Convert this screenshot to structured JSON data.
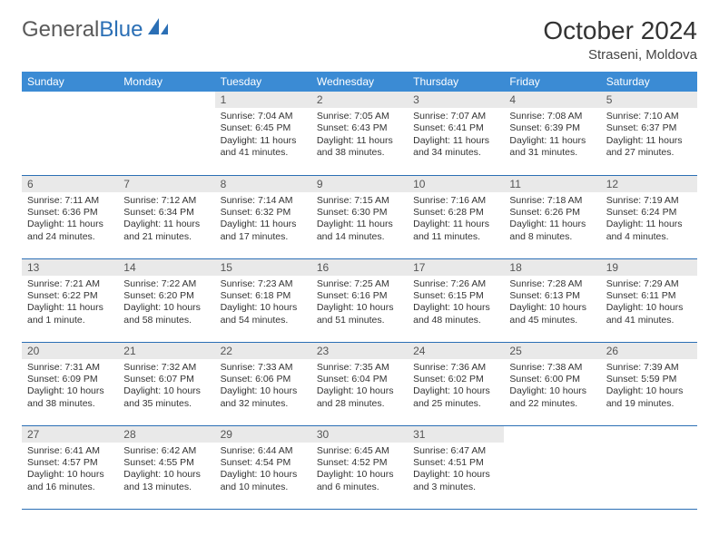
{
  "brand": {
    "part1": "General",
    "part2": "Blue"
  },
  "title": "October 2024",
  "location": "Straseni, Moldova",
  "colors": {
    "header_bg": "#3b8bd4",
    "rule": "#2b6fb5",
    "daynum_bg": "#e9e9e9",
    "text": "#333333"
  },
  "weekdays": [
    "Sunday",
    "Monday",
    "Tuesday",
    "Wednesday",
    "Thursday",
    "Friday",
    "Saturday"
  ],
  "weeks": [
    [
      null,
      null,
      {
        "n": "1",
        "sr": "7:04 AM",
        "ss": "6:45 PM",
        "dl": "11 hours and 41 minutes."
      },
      {
        "n": "2",
        "sr": "7:05 AM",
        "ss": "6:43 PM",
        "dl": "11 hours and 38 minutes."
      },
      {
        "n": "3",
        "sr": "7:07 AM",
        "ss": "6:41 PM",
        "dl": "11 hours and 34 minutes."
      },
      {
        "n": "4",
        "sr": "7:08 AM",
        "ss": "6:39 PM",
        "dl": "11 hours and 31 minutes."
      },
      {
        "n": "5",
        "sr": "7:10 AM",
        "ss": "6:37 PM",
        "dl": "11 hours and 27 minutes."
      }
    ],
    [
      {
        "n": "6",
        "sr": "7:11 AM",
        "ss": "6:36 PM",
        "dl": "11 hours and 24 minutes."
      },
      {
        "n": "7",
        "sr": "7:12 AM",
        "ss": "6:34 PM",
        "dl": "11 hours and 21 minutes."
      },
      {
        "n": "8",
        "sr": "7:14 AM",
        "ss": "6:32 PM",
        "dl": "11 hours and 17 minutes."
      },
      {
        "n": "9",
        "sr": "7:15 AM",
        "ss": "6:30 PM",
        "dl": "11 hours and 14 minutes."
      },
      {
        "n": "10",
        "sr": "7:16 AM",
        "ss": "6:28 PM",
        "dl": "11 hours and 11 minutes."
      },
      {
        "n": "11",
        "sr": "7:18 AM",
        "ss": "6:26 PM",
        "dl": "11 hours and 8 minutes."
      },
      {
        "n": "12",
        "sr": "7:19 AM",
        "ss": "6:24 PM",
        "dl": "11 hours and 4 minutes."
      }
    ],
    [
      {
        "n": "13",
        "sr": "7:21 AM",
        "ss": "6:22 PM",
        "dl": "11 hours and 1 minute."
      },
      {
        "n": "14",
        "sr": "7:22 AM",
        "ss": "6:20 PM",
        "dl": "10 hours and 58 minutes."
      },
      {
        "n": "15",
        "sr": "7:23 AM",
        "ss": "6:18 PM",
        "dl": "10 hours and 54 minutes."
      },
      {
        "n": "16",
        "sr": "7:25 AM",
        "ss": "6:16 PM",
        "dl": "10 hours and 51 minutes."
      },
      {
        "n": "17",
        "sr": "7:26 AM",
        "ss": "6:15 PM",
        "dl": "10 hours and 48 minutes."
      },
      {
        "n": "18",
        "sr": "7:28 AM",
        "ss": "6:13 PM",
        "dl": "10 hours and 45 minutes."
      },
      {
        "n": "19",
        "sr": "7:29 AM",
        "ss": "6:11 PM",
        "dl": "10 hours and 41 minutes."
      }
    ],
    [
      {
        "n": "20",
        "sr": "7:31 AM",
        "ss": "6:09 PM",
        "dl": "10 hours and 38 minutes."
      },
      {
        "n": "21",
        "sr": "7:32 AM",
        "ss": "6:07 PM",
        "dl": "10 hours and 35 minutes."
      },
      {
        "n": "22",
        "sr": "7:33 AM",
        "ss": "6:06 PM",
        "dl": "10 hours and 32 minutes."
      },
      {
        "n": "23",
        "sr": "7:35 AM",
        "ss": "6:04 PM",
        "dl": "10 hours and 28 minutes."
      },
      {
        "n": "24",
        "sr": "7:36 AM",
        "ss": "6:02 PM",
        "dl": "10 hours and 25 minutes."
      },
      {
        "n": "25",
        "sr": "7:38 AM",
        "ss": "6:00 PM",
        "dl": "10 hours and 22 minutes."
      },
      {
        "n": "26",
        "sr": "7:39 AM",
        "ss": "5:59 PM",
        "dl": "10 hours and 19 minutes."
      }
    ],
    [
      {
        "n": "27",
        "sr": "6:41 AM",
        "ss": "4:57 PM",
        "dl": "10 hours and 16 minutes."
      },
      {
        "n": "28",
        "sr": "6:42 AM",
        "ss": "4:55 PM",
        "dl": "10 hours and 13 minutes."
      },
      {
        "n": "29",
        "sr": "6:44 AM",
        "ss": "4:54 PM",
        "dl": "10 hours and 10 minutes."
      },
      {
        "n": "30",
        "sr": "6:45 AM",
        "ss": "4:52 PM",
        "dl": "10 hours and 6 minutes."
      },
      {
        "n": "31",
        "sr": "6:47 AM",
        "ss": "4:51 PM",
        "dl": "10 hours and 3 minutes."
      },
      null,
      null
    ]
  ],
  "labels": {
    "sunrise": "Sunrise:",
    "sunset": "Sunset:",
    "daylight": "Daylight:"
  }
}
